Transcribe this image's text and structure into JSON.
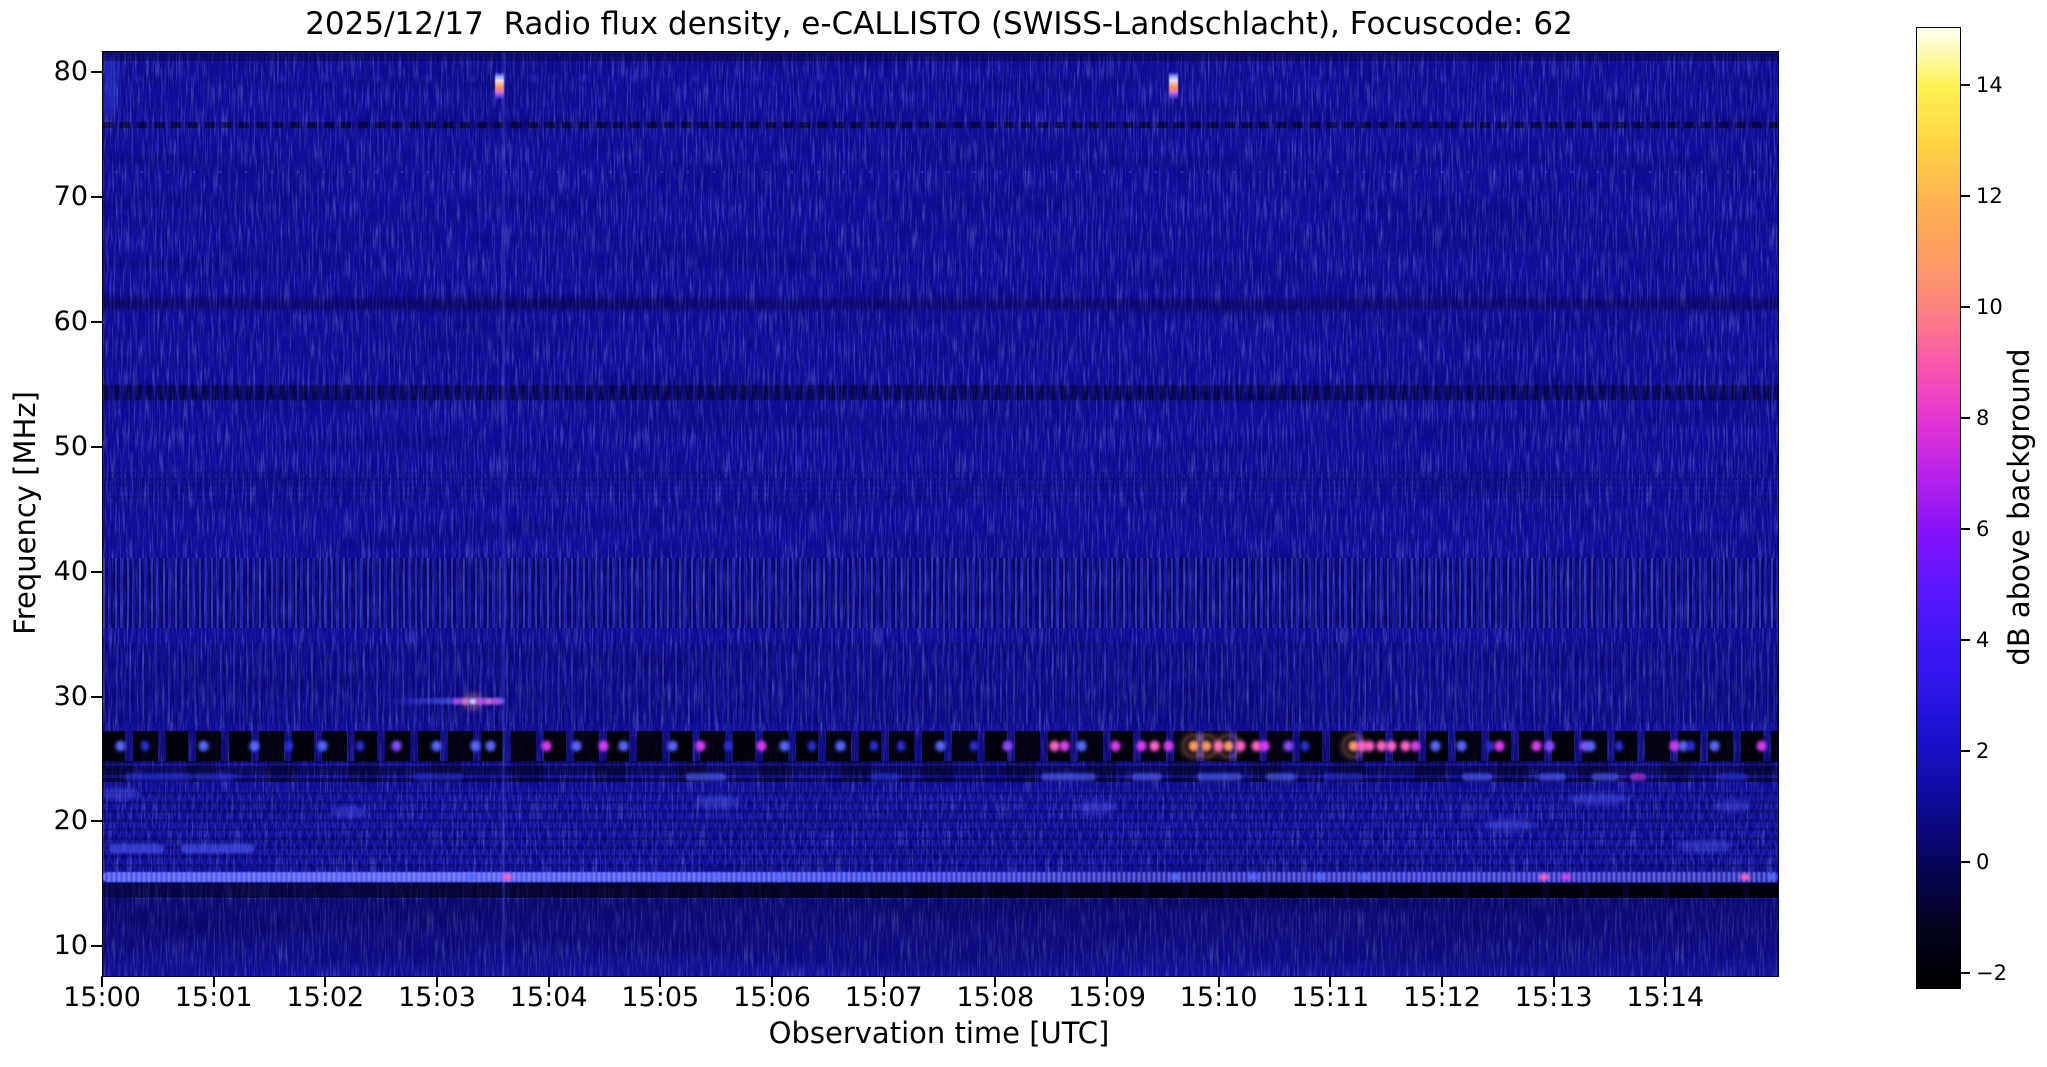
{
  "title": "2025/12/17  Radio flux density, e-CALLISTO (SWISS-Landschlacht), Focuscode: 62",
  "axes": {
    "xlabel": "Observation time [UTC]",
    "ylabel": "Frequency [MHz]",
    "x_ticks": [
      "15:00",
      "15:01",
      "15:02",
      "15:03",
      "15:04",
      "15:05",
      "15:06",
      "15:07",
      "15:08",
      "15:09",
      "15:10",
      "15:11",
      "15:12",
      "15:13",
      "15:14"
    ],
    "y_ticks": [
      80,
      70,
      60,
      50,
      40,
      30,
      20,
      10
    ]
  },
  "colorbar": {
    "label": "dB above background",
    "tick_labels": [
      "14",
      "12",
      "10",
      "8",
      "6",
      "4",
      "2",
      "0",
      "−2"
    ],
    "tick_values": [
      14,
      12,
      10,
      8,
      6,
      4,
      2,
      0,
      -2
    ],
    "vmin": -2.25,
    "vmax": 15.05,
    "colormap_stops": [
      {
        "v": -2.25,
        "c": "#000000"
      },
      {
        "v": -1.2,
        "c": "#03021c"
      },
      {
        "v": 0,
        "c": "#08055c"
      },
      {
        "v": 1,
        "c": "#0e0a90"
      },
      {
        "v": 2,
        "c": "#1610c4"
      },
      {
        "v": 3,
        "c": "#2a14e4"
      },
      {
        "v": 4,
        "c": "#3f17f8"
      },
      {
        "v": 5,
        "c": "#5c17ff"
      },
      {
        "v": 6,
        "c": "#8712f8"
      },
      {
        "v": 7,
        "c": "#b722e8"
      },
      {
        "v": 8,
        "c": "#e236d2"
      },
      {
        "v": 9,
        "c": "#f957ad"
      },
      {
        "v": 10,
        "c": "#fc8380"
      },
      {
        "v": 11,
        "c": "#fd9f60"
      },
      {
        "v": 12,
        "c": "#feb44e"
      },
      {
        "v": 13,
        "c": "#fed544"
      },
      {
        "v": 14,
        "c": "#fdf352"
      },
      {
        "v": 15.05,
        "c": "#fffff5"
      }
    ]
  },
  "chart_data": {
    "type": "heatmap",
    "subtype": "radio-spectrogram",
    "date": "2025/12/17",
    "instrument": "e-CALLISTO (SWISS-Landschlacht)",
    "focuscode": "62",
    "title": "2025/12/17  Radio flux density, e-CALLISTO (SWISS-Landschlacht), Focuscode: 62",
    "xlabel": "Observation time [UTC]",
    "ylabel": "Frequency [MHz]",
    "zlabel": "dB above background",
    "x_range": [
      "15:00",
      "15:15"
    ],
    "y_range_mhz": [
      7.7,
      81.7
    ],
    "z_range_db": [
      -2.25,
      15.05
    ],
    "background_level_db": 1,
    "blob_palette": {
      "b1": "#2a2fd8",
      "b2": "#5668ff",
      "v": "#8a4bff",
      "m": "#d83df0",
      "p": "#ff63c8",
      "hot": "#ff9a62",
      "w": "#ffe2f4",
      "td": "#3c49e8"
    },
    "transients": [
      {
        "t_min": 3.555,
        "time": "15:03:33",
        "freq_mhz": 78.8,
        "peak_db": 10.5
      },
      {
        "t_min": 9.585,
        "time": "15:09:35",
        "freq_mhz": 78.8,
        "peak_db": 10
      }
    ],
    "vertical_streak_t_min": 3.585,
    "bands_render": [
      {
        "f1": 81.7,
        "f2": 81.0,
        "cls": "topshade",
        "desc": "slightly darker top edge"
      },
      {
        "f1": 76.1,
        "f2": 75.6,
        "cls": "dark76",
        "desc": "dark interference lane ~76 MHz"
      },
      {
        "f1": 72.4,
        "f2": 71.8,
        "cls": "dots72",
        "desc": "faint bright dotted lane ~72 MHz"
      },
      {
        "f1": 62.0,
        "f2": 61.0,
        "cls": "darkwave61",
        "desc": "faint dark undulating lane ~61 MHz"
      },
      {
        "f1": 55.0,
        "f2": 53.8,
        "cls": "darkband54",
        "desc": "dark speckled lane ~54 MHz"
      },
      {
        "f1": 48.2,
        "f2": 46.0,
        "cls": "finedots",
        "desc": "fine dotted texture 46-48 MHz"
      },
      {
        "f1": 41.2,
        "f2": 35.6,
        "cls": "stripeband",
        "desc": "strong vertical striping 36-41 MHz"
      },
      {
        "f1": 34.4,
        "f2": 28.0,
        "cls": "midtex",
        "desc": "moderate striping 28-34 MHz"
      },
      {
        "f1": 27.35,
        "f2": 24.95,
        "cls": "cbband",
        "desc": "dark CB/HF band with strong RFI bursts"
      },
      {
        "f1": 24.95,
        "f2": 23.2,
        "cls": "dkrows",
        "desc": "dark rows below CB band"
      },
      {
        "f1": 22.6,
        "f2": 16.4,
        "cls": "crosshatch",
        "desc": "cross-hatched ionospheric texture 16-23 MHz"
      },
      {
        "f1": 16.05,
        "f2": 15.25,
        "cls": "line158",
        "desc": "bright continuous RFI line ~16 MHz"
      },
      {
        "f1": 15.15,
        "f2": 13.95,
        "cls": "darkunder",
        "desc": "black lane below bright line"
      },
      {
        "f1": 13.9,
        "f2": 7.7,
        "cls": "bottomshade",
        "desc": "quiet bottom region"
      },
      {
        "f1": 11.2,
        "f2": 10.6,
        "cls": "botdots",
        "desc": "faint dotted lane ~11 MHz"
      }
    ],
    "cb_band": {
      "freq_mhz": 26.15,
      "blobs": [
        [
          0.16,
          "b2"
        ],
        [
          0.38,
          "b1"
        ],
        [
          0.9,
          "b2"
        ],
        [
          1.36,
          "b2"
        ],
        [
          1.67,
          "b1"
        ],
        [
          1.97,
          "b2"
        ],
        [
          2.3,
          "b1"
        ],
        [
          2.63,
          "v"
        ],
        [
          2.99,
          "b2"
        ],
        [
          3.34,
          "b2"
        ],
        [
          3.47,
          "b2"
        ],
        [
          3.97,
          "m"
        ],
        [
          4.24,
          "b2"
        ],
        [
          4.48,
          "m"
        ],
        [
          4.66,
          "b2"
        ],
        [
          5.1,
          "b2"
        ],
        [
          5.35,
          "m"
        ],
        [
          5.6,
          "b1"
        ],
        [
          5.9,
          "m"
        ],
        [
          6.1,
          "b2"
        ],
        [
          6.35,
          "b1"
        ],
        [
          6.6,
          "b2"
        ],
        [
          6.9,
          "b1"
        ],
        [
          7.15,
          "b1"
        ],
        [
          7.5,
          "b2"
        ],
        [
          7.8,
          "b1"
        ],
        [
          8.1,
          "v"
        ],
        [
          8.52,
          "p"
        ],
        [
          8.61,
          "m"
        ],
        [
          8.76,
          "b2"
        ],
        [
          9.07,
          "m"
        ],
        [
          9.3,
          "m"
        ],
        [
          9.42,
          "p"
        ],
        [
          9.54,
          "m"
        ],
        [
          9.77,
          "hot"
        ],
        [
          9.88,
          "hot"
        ],
        [
          9.99,
          "p"
        ],
        [
          10.08,
          "hot"
        ],
        [
          10.19,
          "p"
        ],
        [
          10.33,
          "p"
        ],
        [
          10.4,
          "m"
        ],
        [
          10.62,
          "v"
        ],
        [
          10.76,
          "b1"
        ],
        [
          11.2,
          "hot"
        ],
        [
          11.27,
          "p"
        ],
        [
          11.34,
          "p"
        ],
        [
          11.45,
          "p"
        ],
        [
          11.54,
          "p"
        ],
        [
          11.66,
          "p"
        ],
        [
          11.75,
          "m"
        ],
        [
          11.93,
          "b2"
        ],
        [
          12.17,
          "b2"
        ],
        [
          12.42,
          "b1"
        ],
        [
          12.51,
          "m"
        ],
        [
          12.84,
          "m"
        ],
        [
          12.95,
          "v"
        ],
        [
          13.27,
          "v"
        ],
        [
          13.32,
          "b2"
        ],
        [
          13.58,
          "b1"
        ],
        [
          14.07,
          "m"
        ],
        [
          14.15,
          "b2"
        ],
        [
          14.22,
          "b1"
        ],
        [
          14.43,
          "b2"
        ],
        [
          14.85,
          "m"
        ]
      ]
    },
    "subdash_row": {
      "freq_mhz": 23.65,
      "dashes": [
        [
          0.5,
          "b1",
          70
        ],
        [
          1.0,
          "b1",
          40
        ],
        [
          3.0,
          "b1",
          50
        ],
        [
          5.4,
          "b2",
          40
        ],
        [
          7.0,
          "b1",
          30
        ],
        [
          8.65,
          "b2",
          55
        ],
        [
          9.35,
          "b2",
          30
        ],
        [
          10.0,
          "b2",
          45
        ],
        [
          10.55,
          "b2",
          30
        ],
        [
          11.1,
          "b1",
          40
        ],
        [
          12.3,
          "b2",
          30
        ],
        [
          12.98,
          "b2",
          28
        ],
        [
          13.45,
          "b2",
          26
        ],
        [
          13.75,
          "m",
          16
        ],
        [
          14.6,
          "b1",
          30
        ]
      ]
    },
    "line16_blobs": {
      "freq_mhz": 15.65,
      "blobs": [
        [
          3.3,
          "b2"
        ],
        [
          3.62,
          "p"
        ],
        [
          5.0,
          "b2"
        ],
        [
          5.5,
          "b2"
        ],
        [
          6.05,
          "b2"
        ],
        [
          9.6,
          "b2"
        ],
        [
          10.3,
          "b2"
        ],
        [
          10.9,
          "b2"
        ],
        [
          11.3,
          "b2"
        ],
        [
          12.9,
          "p"
        ],
        [
          13.1,
          "m"
        ],
        [
          14.7,
          "p"
        ],
        [
          14.95,
          "b2"
        ]
      ]
    },
    "dash18": {
      "freq_mhz": 17.95,
      "segments_min": [
        [
          0.05,
          0.55
        ],
        [
          0.7,
          1.35
        ]
      ]
    },
    "top_dots": {
      "freq_mhz": 79.6,
      "times_min": [
        0.3,
        0.8,
        1.6,
        2.0,
        2.45,
        2.9,
        3.3,
        3.85,
        4.3,
        4.75,
        5.3,
        5.85,
        6.4,
        10.3,
        10.85,
        11.4,
        12.0,
        12.45
      ]
    },
    "streak31": {
      "freq_mhz": 29.7,
      "t_start_min": 2.5,
      "t_end_min": 3.6,
      "dots": [
        [
          3.17,
          "m"
        ],
        [
          3.24,
          "p"
        ],
        [
          3.31,
          "w"
        ],
        [
          3.38,
          "m"
        ],
        [
          3.46,
          "p"
        ],
        [
          3.53,
          "m"
        ]
      ]
    },
    "wisps": [
      [
        0.15,
        22.3,
        40
      ],
      [
        2.2,
        20.8,
        36
      ],
      [
        5.5,
        21.6,
        44
      ],
      [
        8.9,
        21.2,
        40
      ],
      [
        12.6,
        19.8,
        50
      ],
      [
        13.4,
        21.9,
        60
      ],
      [
        14.35,
        18.1,
        55
      ],
      [
        14.6,
        21.3,
        36
      ]
    ]
  }
}
